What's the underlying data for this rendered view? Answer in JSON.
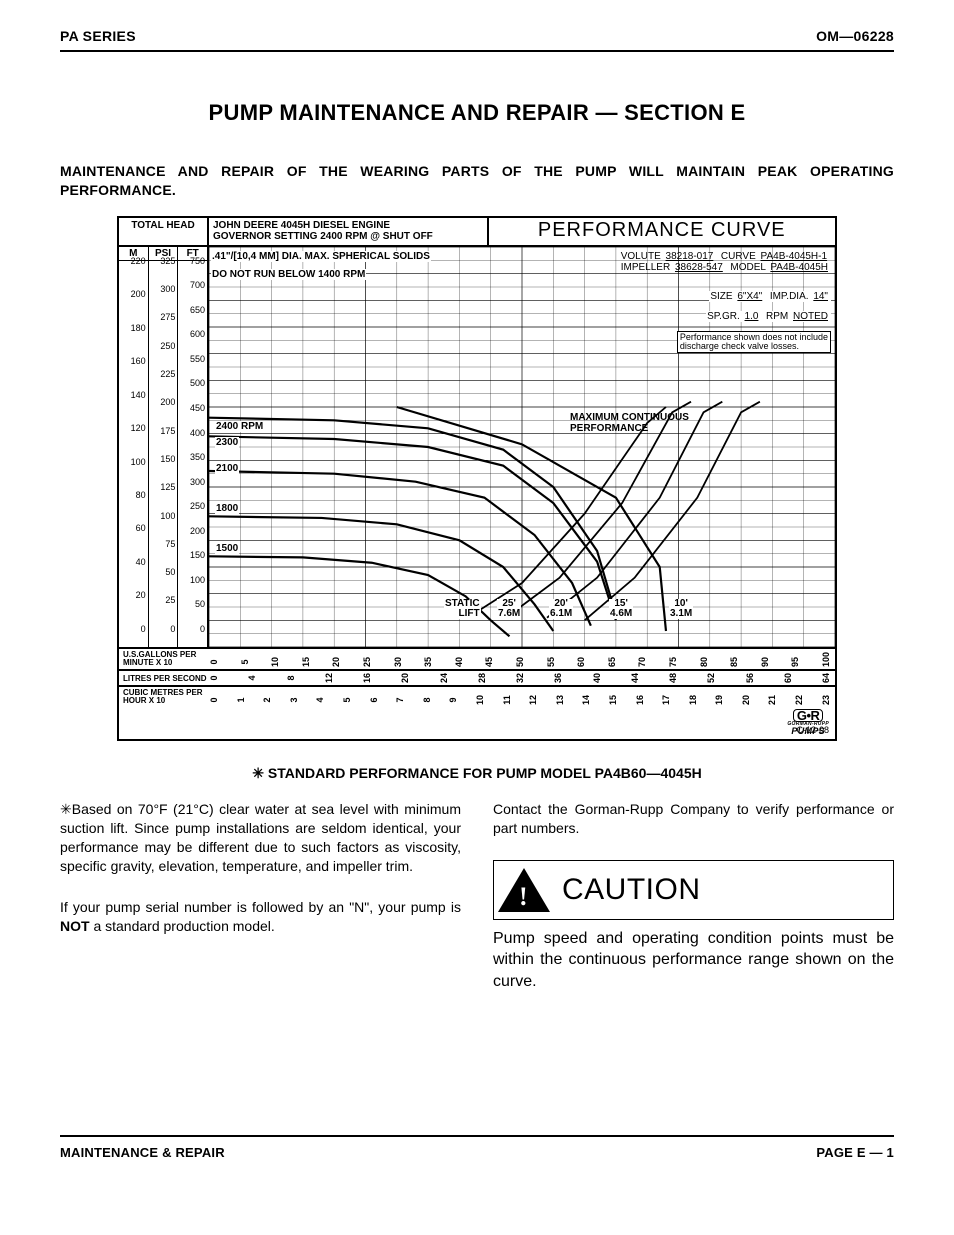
{
  "header": {
    "left": "PA SERIES",
    "right": "OM—06228"
  },
  "title": "PUMP MAINTENANCE AND REPAIR — SECTION E",
  "intro": "MAINTENANCE AND REPAIR OF THE WEARING PARTS OF THE PUMP WILL MAINTAIN PEAK OPERATING PERFORMANCE.",
  "chart": {
    "total_head_label": "TOTAL HEAD",
    "engine_line1": "JOHN DEERE 4045H DIESEL ENGINE",
    "engine_line2": "GOVERNOR SETTING 2400 RPM @ SHUT OFF",
    "perf_curve_label": "PERFORMANCE CURVE",
    "solids": ".41\"/[10,4 MM] DIA. MAX. SPHERICAL SOLIDS",
    "do_not_run": "DO NOT RUN BELOW 1400 RPM",
    "fields": {
      "volute_l": "VOLUTE",
      "volute_v": "38218-017",
      "curve_l": "CURVE",
      "curve_v": "PA4B-4045H-1",
      "impeller_l": "IMPELLER",
      "impeller_v": "38628-547",
      "model_l": "MODEL",
      "model_v": "PA4B-4045H",
      "size_l": "SIZE",
      "size_v": "6\"X4\"",
      "impdia_l": "IMP.DIA.",
      "impdia_v": "14\"",
      "spgr_l": "SP.GR.",
      "spgr_v": "1.0",
      "rpm_l": "RPM",
      "rpm_v": "NOTED"
    },
    "disclaimer1": "Performance shown does not include",
    "disclaimer2": "discharge check valve losses.",
    "max_cont": "MAXIMUM CONTINUOUS",
    "max_perf": "PERFORMANCE",
    "rpm_labels": [
      "2400 RPM",
      "2300",
      "2100",
      "1800",
      "1500"
    ],
    "static_lift_head": "STATIC\nLIFT",
    "static_lifts": [
      {
        "ft": "25'",
        "m": "7.6M"
      },
      {
        "ft": "20'",
        "m": "6.1M"
      },
      {
        "ft": "15'",
        "m": "4.6M"
      },
      {
        "ft": "10'",
        "m": "3.1M"
      }
    ],
    "yaxis": {
      "cols": [
        {
          "head": "M",
          "ticks": [
            "220",
            "200",
            "180",
            "160",
            "140",
            "120",
            "100",
            "80",
            "60",
            "40",
            "20",
            "0"
          ]
        },
        {
          "head": "PSI",
          "ticks": [
            "325",
            "300",
            "275",
            "250",
            "225",
            "200",
            "175",
            "150",
            "125",
            "100",
            "75",
            "50",
            "25",
            "0"
          ]
        },
        {
          "head": "FT",
          "ticks": [
            "750",
            "700",
            "650",
            "600",
            "550",
            "500",
            "450",
            "400",
            "350",
            "300",
            "250",
            "200",
            "150",
            "100",
            "50",
            "0"
          ]
        }
      ]
    },
    "xaxes": [
      {
        "label": "U.S.GALLONS\nPER MINUTE X 10",
        "ticks": [
          "0",
          "5",
          "10",
          "15",
          "20",
          "25",
          "30",
          "35",
          "40",
          "45",
          "50",
          "55",
          "60",
          "65",
          "70",
          "75",
          "80",
          "85",
          "90",
          "95",
          "100"
        ]
      },
      {
        "label": "LITRES\nPER SECOND",
        "ticks": [
          "0",
          "4",
          "8",
          "12",
          "16",
          "20",
          "24",
          "28",
          "32",
          "36",
          "40",
          "44",
          "48",
          "52",
          "56",
          "60",
          "64"
        ]
      },
      {
        "label": "CUBIC METRES\nPER HOUR X 10",
        "ticks": [
          "0",
          "1",
          "2",
          "3",
          "4",
          "5",
          "6",
          "7",
          "8",
          "9",
          "10",
          "11",
          "12",
          "13",
          "14",
          "15",
          "16",
          "17",
          "18",
          "19",
          "20",
          "21",
          "22",
          "23"
        ]
      }
    ],
    "grid": {
      "color": "#000",
      "minor": 5,
      "major": 50,
      "xlim": [
        0,
        100
      ],
      "ylim": [
        0,
        750
      ]
    },
    "curves_rpm": [
      {
        "name": "2400",
        "pts": [
          [
            0,
            430
          ],
          [
            20,
            425
          ],
          [
            35,
            410
          ],
          [
            47,
            370
          ],
          [
            55,
            300
          ],
          [
            62,
            180
          ],
          [
            65,
            60
          ]
        ]
      },
      {
        "name": "2300",
        "pts": [
          [
            0,
            395
          ],
          [
            20,
            390
          ],
          [
            35,
            375
          ],
          [
            47,
            340
          ],
          [
            55,
            270
          ],
          [
            62,
            160
          ],
          [
            65,
            50
          ]
        ]
      },
      {
        "name": "2100",
        "pts": [
          [
            0,
            330
          ],
          [
            20,
            325
          ],
          [
            33,
            310
          ],
          [
            44,
            280
          ],
          [
            52,
            210
          ],
          [
            58,
            120
          ],
          [
            61,
            40
          ]
        ]
      },
      {
        "name": "1800",
        "pts": [
          [
            0,
            245
          ],
          [
            18,
            242
          ],
          [
            30,
            230
          ],
          [
            40,
            200
          ],
          [
            47,
            150
          ],
          [
            52,
            80
          ],
          [
            55,
            30
          ]
        ]
      },
      {
        "name": "1500",
        "pts": [
          [
            0,
            170
          ],
          [
            15,
            168
          ],
          [
            26,
            158
          ],
          [
            35,
            135
          ],
          [
            41,
            95
          ],
          [
            45,
            50
          ],
          [
            48,
            20
          ]
        ]
      }
    ],
    "curve_maxcont": [
      [
        30,
        450
      ],
      [
        50,
        380
      ],
      [
        65,
        280
      ],
      [
        72,
        150
      ],
      [
        73,
        30
      ]
    ],
    "curves_lift": [
      [
        [
          42,
          60
        ],
        [
          50,
          120
        ],
        [
          60,
          250
        ],
        [
          70,
          420
        ],
        [
          73,
          450
        ]
      ],
      [
        [
          48,
          60
        ],
        [
          56,
          130
        ],
        [
          66,
          270
        ],
        [
          74,
          440
        ],
        [
          77,
          460
        ]
      ],
      [
        [
          54,
          55
        ],
        [
          62,
          130
        ],
        [
          72,
          280
        ],
        [
          79,
          440
        ],
        [
          82,
          460
        ]
      ],
      [
        [
          60,
          50
        ],
        [
          68,
          130
        ],
        [
          78,
          280
        ],
        [
          85,
          440
        ],
        [
          88,
          460
        ]
      ]
    ],
    "brand_top": "G•R",
    "brand_sub": "GORMAN-RUPP",
    "brand_bot": "PUMPS",
    "cnum": "C-12-08"
  },
  "caption": "✳ STANDARD PERFORMANCE FOR PUMP MODEL PA4B60—4045H",
  "col_left_p1": "✳Based on 70°F (21°C) clear water at sea level with minimum suction lift. Since pump installations are seldom identical, your performance may be different due to such factors as viscosity, specific gravity, elevation, temperature, and impeller trim.",
  "col_left_p2a": "If your pump serial number is followed by an \"N\", your pump is ",
  "col_left_p2b": "NOT",
  "col_left_p2c": " a standard production model.",
  "col_right_p1": "Contact the Gorman-Rupp Company to verify performance or part numbers.",
  "caution_label": "CAUTION",
  "caution_body": "Pump speed and operating condition points must be within the continuous performance range shown on the curve.",
  "footer": {
    "left": "MAINTENANCE & REPAIR",
    "right": "PAGE E — 1"
  }
}
